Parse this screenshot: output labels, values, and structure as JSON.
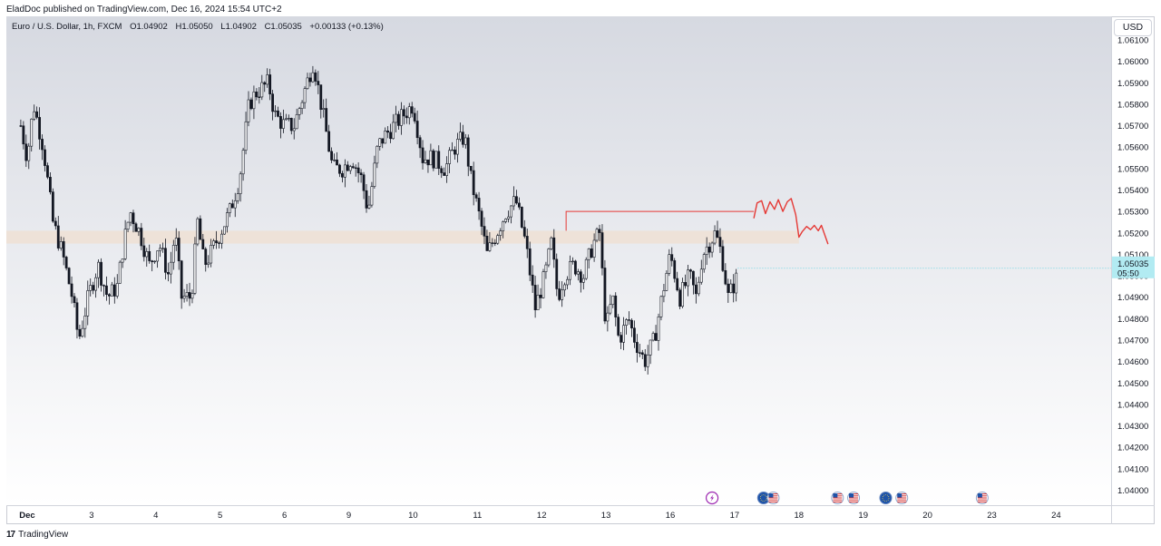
{
  "publisher_line": "EladDoc published on TradingView.com, Dec 16, 2024 15:54 UTC+2",
  "symbol": {
    "name": "Euro / U.S. Dollar, 1h, FXCM",
    "open": "O1.04902",
    "high": "H1.05050",
    "low": "L1.04902",
    "close": "C1.05035",
    "change": "+0.00133 (+0.13%)"
  },
  "currency_button": "USD",
  "price_label": {
    "value": "1.05035",
    "countdown": "05:50"
  },
  "footer": {
    "logo_icon": "tradingview-logo-icon",
    "brand": "TradingView"
  },
  "colors": {
    "candle": "#131722",
    "zone": "#efe1d3",
    "drawing": "#e53935",
    "price_label_bg": "#b2ebf2",
    "lightning_icon": "#9c27b0",
    "flag_blue": "#1e53a8",
    "flag_red": "#d32f2f"
  },
  "chart_data": {
    "type": "candlestick",
    "timeframe": "1h",
    "y_ticks": [
      "1.06100",
      "1.06000",
      "1.05900",
      "1.05800",
      "1.05700",
      "1.05600",
      "1.05500",
      "1.05400",
      "1.05300",
      "1.05200",
      "1.05100",
      "1.05000",
      "1.04900",
      "1.04800",
      "1.04700",
      "1.04600",
      "1.04500",
      "1.04400",
      "1.04300",
      "1.04200",
      "1.04100",
      "1.04000"
    ],
    "ylim": [
      1.0393,
      1.0621
    ],
    "x_ticks": [
      {
        "label": "Dec",
        "day": 2,
        "bold": true
      },
      {
        "label": "3",
        "day": 3
      },
      {
        "label": "4",
        "day": 4
      },
      {
        "label": "5",
        "day": 5
      },
      {
        "label": "6",
        "day": 6
      },
      {
        "label": "9",
        "day": 7
      },
      {
        "label": "10",
        "day": 8
      },
      {
        "label": "11",
        "day": 9
      },
      {
        "label": "12",
        "day": 10
      },
      {
        "label": "13",
        "day": 11
      },
      {
        "label": "16",
        "day": 12
      },
      {
        "label": "17",
        "day": 13
      },
      {
        "label": "18",
        "day": 14
      },
      {
        "label": "19",
        "day": 15
      },
      {
        "label": "20",
        "day": 16
      },
      {
        "label": "23",
        "day": 17
      },
      {
        "label": "24",
        "day": 18
      }
    ],
    "price_path": [
      [
        1.9,
        1.057
      ],
      [
        2.0,
        1.0555
      ],
      [
        2.1,
        1.058
      ],
      [
        2.25,
        1.056
      ],
      [
        2.4,
        1.0525
      ],
      [
        2.55,
        1.051
      ],
      [
        2.7,
        1.049
      ],
      [
        2.8,
        1.047
      ],
      [
        2.95,
        1.049
      ],
      [
        3.1,
        1.0505
      ],
      [
        3.25,
        1.049
      ],
      [
        3.4,
        1.0495
      ],
      [
        3.5,
        1.0515
      ],
      [
        3.6,
        1.053
      ],
      [
        3.75,
        1.052
      ],
      [
        3.9,
        1.0505
      ],
      [
        4.05,
        1.0515
      ],
      [
        4.2,
        1.05
      ],
      [
        4.3,
        1.052
      ],
      [
        4.4,
        1.049
      ],
      [
        4.55,
        1.049
      ],
      [
        4.65,
        1.0525
      ],
      [
        4.75,
        1.0505
      ],
      [
        4.85,
        1.051
      ],
      [
        5.0,
        1.052
      ],
      [
        5.15,
        1.053
      ],
      [
        5.3,
        1.0545
      ],
      [
        5.45,
        1.058
      ],
      [
        5.55,
        1.0585
      ],
      [
        5.75,
        1.059
      ],
      [
        5.85,
        1.0575
      ],
      [
        6.0,
        1.057
      ],
      [
        6.15,
        1.057
      ],
      [
        6.3,
        1.0585
      ],
      [
        6.45,
        1.06
      ],
      [
        6.6,
        1.0575
      ],
      [
        6.75,
        1.055
      ],
      [
        6.9,
        1.055
      ],
      [
        7.05,
        1.0555
      ],
      [
        7.2,
        1.0545
      ],
      [
        7.3,
        1.053
      ],
      [
        7.45,
        1.056
      ],
      [
        7.55,
        1.0565
      ],
      [
        7.7,
        1.057
      ],
      [
        7.85,
        1.0575
      ],
      [
        8.0,
        1.058
      ],
      [
        8.15,
        1.0555
      ],
      [
        8.3,
        1.0555
      ],
      [
        8.5,
        1.055
      ],
      [
        8.65,
        1.056
      ],
      [
        8.8,
        1.0565
      ],
      [
        8.9,
        1.0545
      ],
      [
        9.05,
        1.0525
      ],
      [
        9.15,
        1.051
      ],
      [
        9.3,
        1.052
      ],
      [
        9.45,
        1.053
      ],
      [
        9.6,
        1.0535
      ],
      [
        9.75,
        1.0515
      ],
      [
        9.9,
        1.0485
      ],
      [
        10.05,
        1.05
      ],
      [
        10.15,
        1.0515
      ],
      [
        10.25,
        1.049
      ],
      [
        10.35,
        1.05
      ],
      [
        10.5,
        1.0505
      ],
      [
        10.65,
        1.05
      ],
      [
        10.8,
        1.0515
      ],
      [
        10.9,
        1.052
      ],
      [
        11.0,
        1.0475
      ],
      [
        11.1,
        1.049
      ],
      [
        11.2,
        1.047
      ],
      [
        11.35,
        1.048
      ],
      [
        11.45,
        1.047
      ],
      [
        11.6,
        1.046
      ],
      [
        11.75,
        1.047
      ],
      [
        11.9,
        1.0495
      ],
      [
        12.0,
        1.051
      ],
      [
        12.15,
        1.049
      ],
      [
        12.3,
        1.05
      ],
      [
        12.4,
        1.049
      ],
      [
        12.5,
        1.051
      ],
      [
        12.6,
        1.0515
      ],
      [
        12.7,
        1.052
      ],
      [
        12.8,
        1.051
      ],
      [
        12.9,
        1.049
      ],
      [
        13.05,
        1.05
      ]
    ],
    "annotations": {
      "sr_zone": {
        "y_low": 1.0515,
        "y_high": 1.0521,
        "x_start": 1.9,
        "x_end": 14.0
      },
      "level_line": {
        "y": 1.053,
        "x_start": 10.38,
        "x_end": 13.3
      },
      "projection_path": [
        [
          13.3,
          1.0527
        ],
        [
          13.35,
          1.0534
        ],
        [
          13.42,
          1.0535
        ],
        [
          13.48,
          1.0529
        ],
        [
          13.55,
          1.05345
        ],
        [
          13.62,
          1.0531
        ],
        [
          13.68,
          1.05355
        ],
        [
          13.75,
          1.053
        ],
        [
          13.82,
          1.05345
        ],
        [
          13.88,
          1.0536
        ],
        [
          13.95,
          1.05285
        ],
        [
          14.0,
          1.0518
        ],
        [
          14.05,
          1.05205
        ],
        [
          14.12,
          1.0523
        ],
        [
          14.18,
          1.05215
        ],
        [
          14.24,
          1.05235
        ],
        [
          14.3,
          1.0521
        ],
        [
          14.35,
          1.05235
        ],
        [
          14.45,
          1.0515
        ]
      ]
    },
    "events": [
      {
        "day": 12.65,
        "icon": "lightning-icon"
      },
      {
        "day": 13.45,
        "icon": "eu-flag-icon"
      },
      {
        "day": 13.6,
        "icon": "us-flag-icon"
      },
      {
        "day": 14.6,
        "icon": "us-flag-icon"
      },
      {
        "day": 14.85,
        "icon": "us-flag-icon"
      },
      {
        "day": 15.35,
        "icon": "eu-flag-icon"
      },
      {
        "day": 15.6,
        "icon": "us-flag-icon"
      },
      {
        "day": 16.85,
        "icon": "us-flag-icon"
      }
    ]
  }
}
